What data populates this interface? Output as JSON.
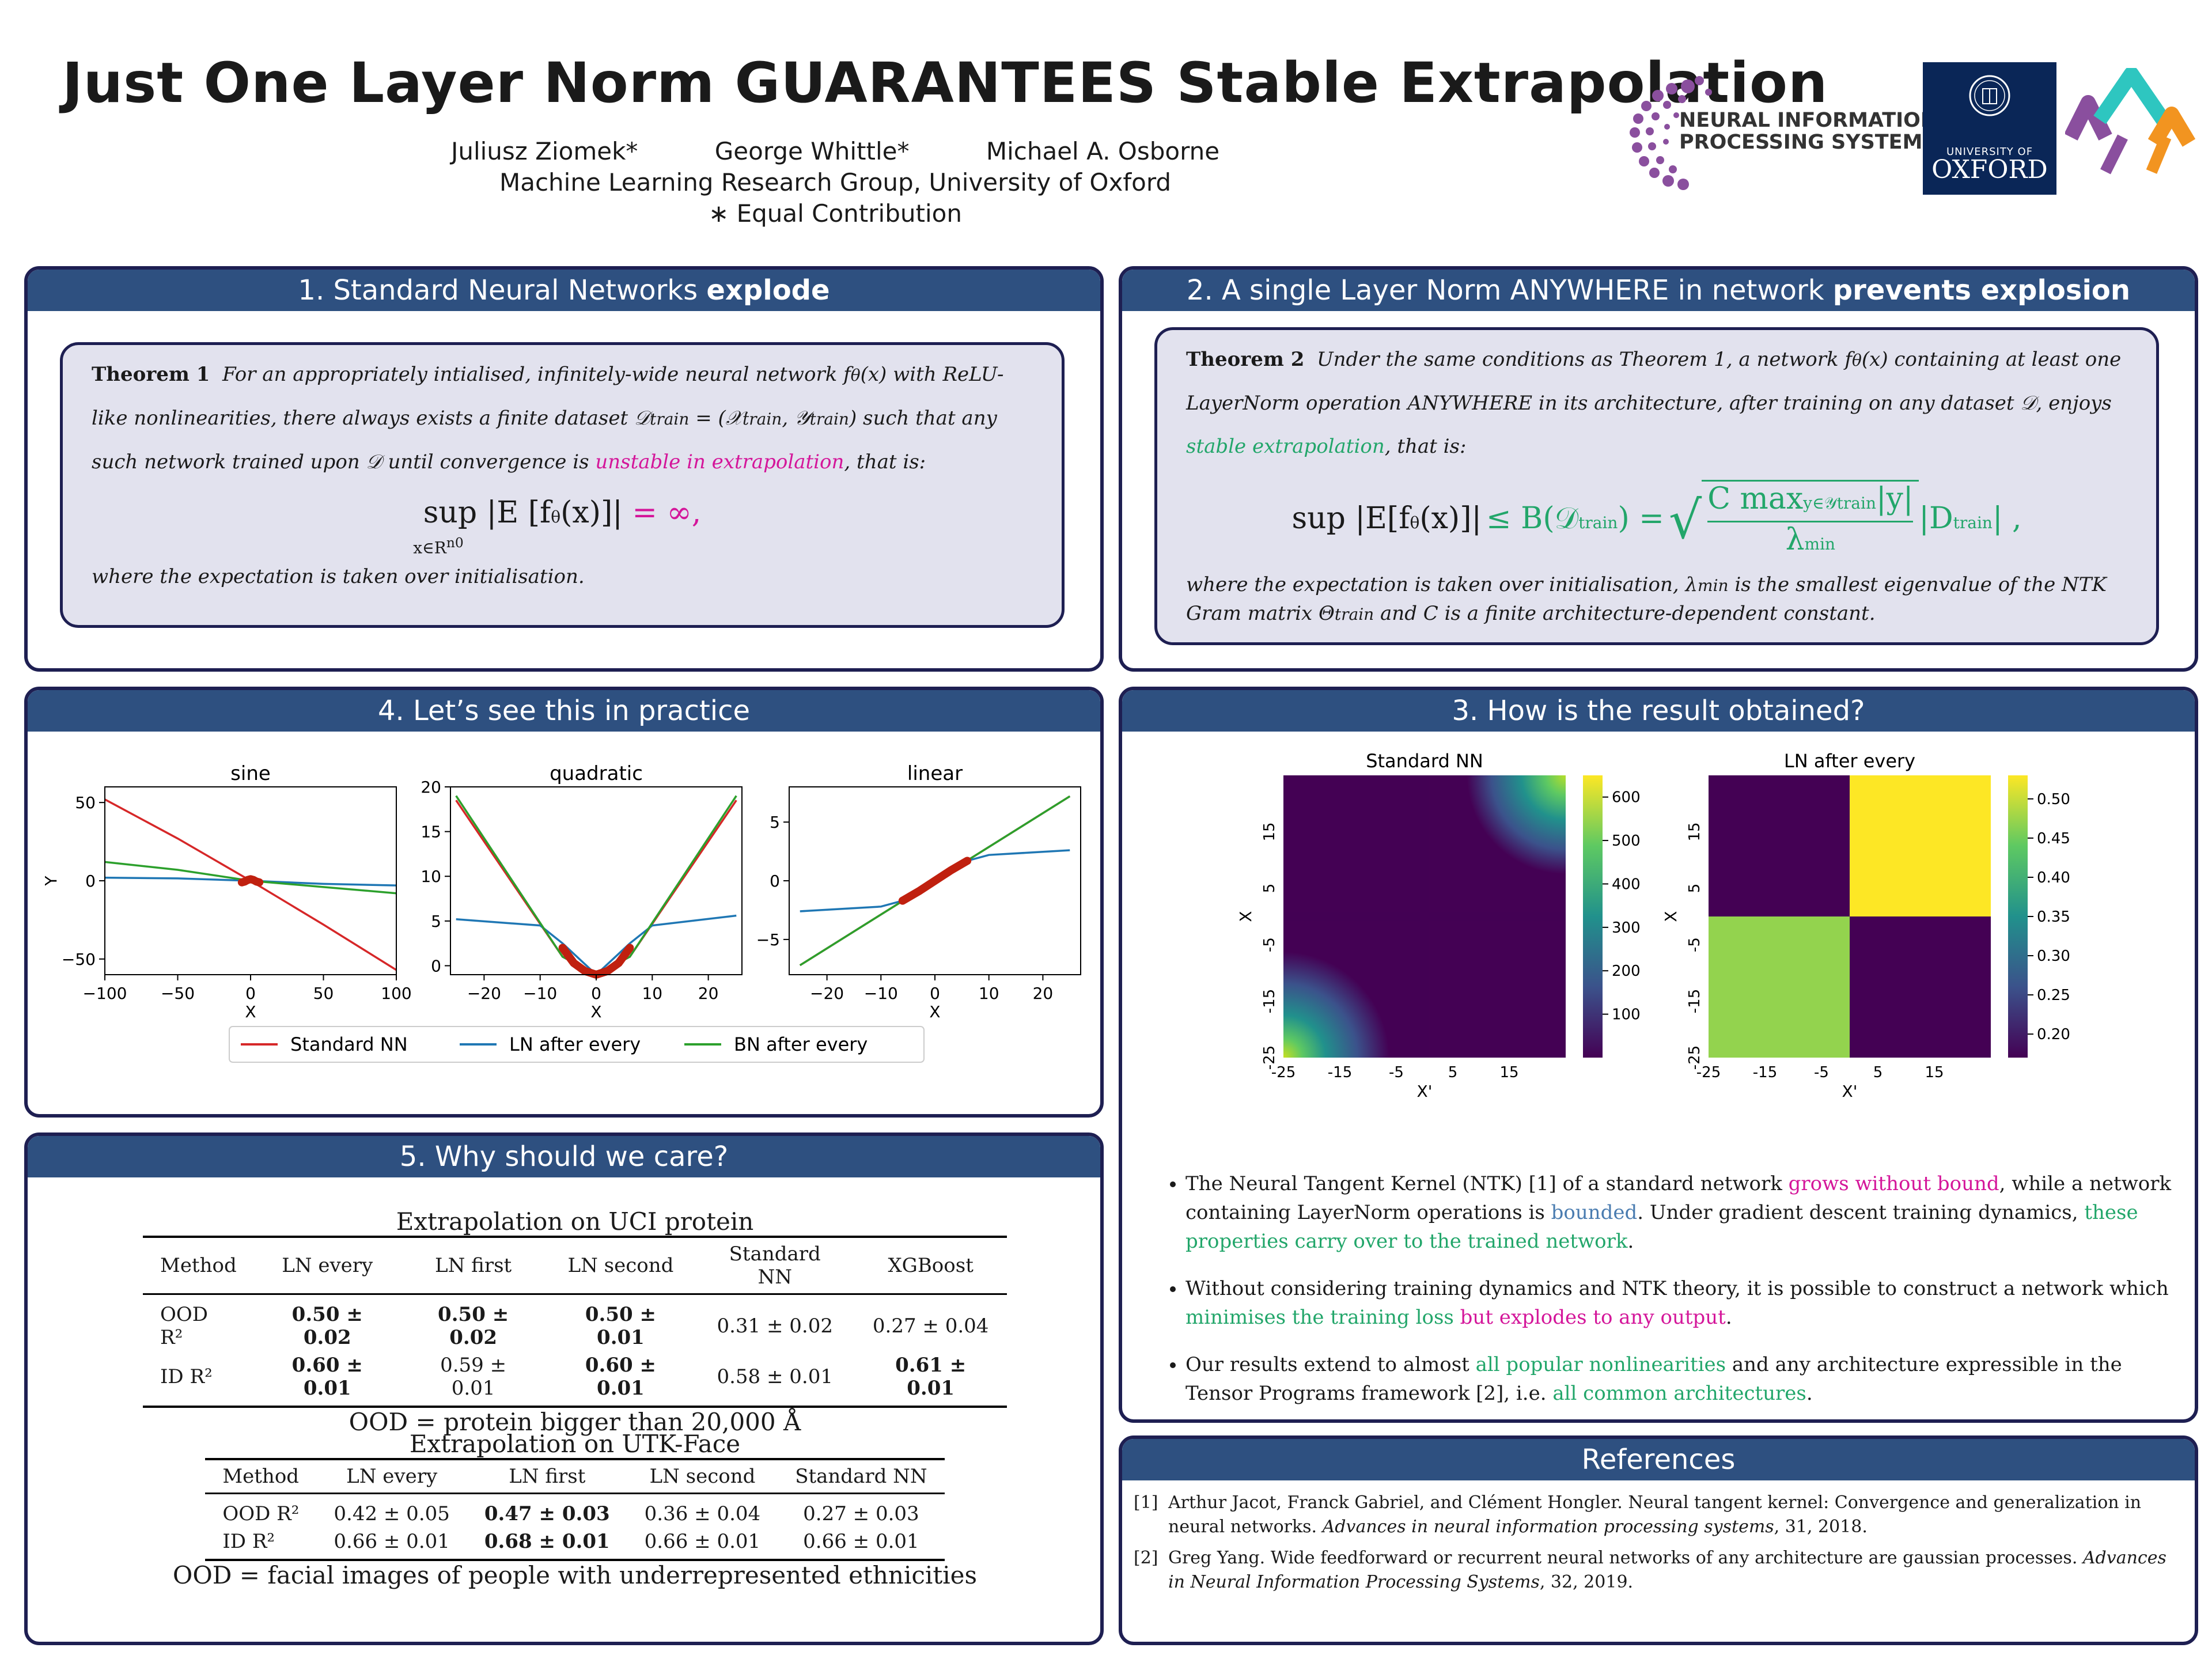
{
  "header": {
    "title": "Just One Layer Norm GUARANTEES Stable Extrapolation",
    "authors": [
      "Juliusz Ziomek*",
      "George Whittle*",
      "Michael A. Osborne"
    ],
    "affiliation": "Machine Learning Research Group, University of Oxford",
    "equal": "∗ Equal Contribution",
    "neurips_line1": "NEURAL INFORMATION",
    "neurips_line2": "PROCESSING SYSTEMS",
    "oxford_line1": "UNIVERSITY OF",
    "oxford_line2": "OXFORD"
  },
  "panel1": {
    "head_plain": "1. Standard Neural Networks ",
    "head_bold": "explode",
    "thm_label": "Theorem 1",
    "thm_text1": "For an appropriately intialised, infinitely-wide neural network f",
    "thm_text2": "(x) with ReLU-like nonlinearities, there always exists a finite dataset 𝒟",
    "thm_text3": " = (𝒳",
    "thm_text4": ", 𝒴",
    "thm_text5": ") such that any such network trained upon 𝒟 until convergence is ",
    "thm_highlight": "unstable in extrapolation",
    "thm_text6": ", that is:",
    "formula_main": "sup |E [f",
    "formula_rest": "(x)]|",
    "formula_eq": "= ∞,",
    "formula_sub": "x∈R",
    "after": "where the expectation is taken over initialisation."
  },
  "panel2": {
    "head_plain": "2. A single Layer Norm ANYWHERE in network ",
    "head_bold": "prevents explosion",
    "thm_label": "Theorem 2",
    "thm_text1": "Under the same conditions as Theorem 1, a network f",
    "thm_text2": "(x) containing at least one LayerNorm operation ANYWHERE in its architecture, after training on any dataset 𝒟, enjoys ",
    "thm_highlight": "stable extrapolation",
    "thm_text3": ", that is:",
    "formula_left": "sup |E[f",
    "formula_left2": "(x)]|",
    "formula_right": "≤ B(𝒟",
    "formula_right2": ") = ",
    "formula_num": "C max",
    "formula_num2": "|y|",
    "formula_den": "λ",
    "formula_tail": "|D",
    "after1": "where the expectation is taken over initialisation, λ",
    "after2": " is the smallest eigenvalue of the NTK Gram matrix Θ",
    "after3": " and C is a finite architecture-dependent constant."
  },
  "panel3": {
    "head": "3. How is the result obtained?",
    "bullets": [
      {
        "p1": "The Neural Tangent Kernel (NTK) [1] of a standard network ",
        "h1": "grows without bound",
        "p2": ", while a network containing LayerNorm operations is ",
        "h2": "bounded",
        "p3": ". Under gradient descent training dynamics, ",
        "h3": "these properties carry over to the trained network",
        "p4": "."
      },
      {
        "p1": "Without considering training dynamics and NTK theory, it is possible to construct a network which ",
        "h1": "minimises the training loss",
        "h2": " but explodes to any output",
        "p2": "."
      },
      {
        "p1": "Our results extend to almost ",
        "h1": "all popular nonlinearities",
        "p2": " and any architecture expressible in the Tensor Programs framework [2], i.e. ",
        "h2": "all common architectures",
        "p3": "."
      }
    ]
  },
  "panel4": {
    "head": "4. Let’s see this in practice"
  },
  "panel5": {
    "head": "5. Why should we care?",
    "table1": {
      "title": "Extrapolation on UCI protein",
      "columns": [
        "Method",
        "LN every",
        "LN first",
        "LN second",
        "Standard NN",
        "XGBoost"
      ],
      "rows": [
        [
          "OOD R²",
          "0.50 ± 0.02",
          "0.50 ± 0.02",
          "0.50 ± 0.01",
          "0.31 ± 0.02",
          "0.27 ± 0.04"
        ],
        [
          "ID R²",
          "0.60 ± 0.01",
          "0.59 ± 0.01",
          "0.60 ± 0.01",
          "0.58 ± 0.01",
          "0.61 ± 0.01"
        ]
      ],
      "note": "OOD = protein bigger than 20,000 Å"
    },
    "table2": {
      "title": "Extrapolation on UTK-Face",
      "columns": [
        "Method",
        "LN every",
        "LN first",
        "LN second",
        "Standard NN"
      ],
      "rows": [
        [
          "OOD R²",
          "0.42 ± 0.05",
          "0.47 ± 0.03",
          "0.36 ± 0.04",
          "0.27 ± 0.03"
        ],
        [
          "ID R²",
          "0.66 ± 0.01",
          "0.68 ± 0.01",
          "0.66 ± 0.01",
          "0.66 ± 0.01"
        ]
      ],
      "note": "OOD = facial images of people with underrepresented ethnicities"
    }
  },
  "refs": {
    "head": "References",
    "items": [
      {
        "n": "[1]",
        "plain": "Arthur Jacot, Franck Gabriel, and Clément Hongler. Neural tangent kernel: Convergence and generalization in neural networks. ",
        "ital": "Advances in neural information processing systems",
        "tail": ", 31, 2018."
      },
      {
        "n": "[2]",
        "plain": "Greg Yang. Wide feedforward or recurrent neural networks of any architecture are gaussian processes. ",
        "ital": "Advances in Neural Information Processing Systems",
        "tail": ", 32, 2019."
      }
    ]
  },
  "chart_data": [
    {
      "type": "line",
      "title": "sine",
      "xlabel": "X",
      "ylabel": "Y",
      "xlim": [
        -100,
        100
      ],
      "ylim": [
        -60,
        60
      ],
      "xticks": [
        -100,
        -50,
        0,
        50,
        100
      ],
      "yticks": [
        50,
        0,
        -50
      ],
      "series": [
        {
          "name": "Standard NN",
          "color": "#d62728",
          "x": [
            -100,
            -50,
            0,
            50,
            100
          ],
          "y": [
            52,
            27,
            0,
            -28,
            -57
          ]
        },
        {
          "name": "LN after every",
          "color": "#1f77b4",
          "x": [
            -100,
            -50,
            0,
            50,
            100
          ],
          "y": [
            2,
            1.5,
            0,
            -2,
            -3
          ]
        },
        {
          "name": "BN after every",
          "color": "#2ca02c",
          "x": [
            -100,
            -50,
            0,
            50,
            100
          ],
          "y": [
            12,
            7,
            0,
            -4,
            -8
          ]
        }
      ],
      "train_points": {
        "x": [
          -6,
          -4,
          -2,
          0,
          2,
          4,
          6
        ],
        "y": [
          -1,
          -0.5,
          0.5,
          1,
          0.5,
          -0.5,
          -1
        ]
      }
    },
    {
      "type": "line",
      "title": "quadratic",
      "xlabel": "X",
      "ylabel": "",
      "xlim": [
        -26,
        26
      ],
      "ylim": [
        -1,
        20
      ],
      "xticks": [
        -20,
        -10,
        0,
        10,
        20
      ],
      "yticks": [
        20,
        15,
        10,
        5,
        0
      ],
      "series": [
        {
          "name": "Standard NN",
          "color": "#d62728",
          "x": [
            -25,
            -6,
            0,
            6,
            25
          ],
          "y": [
            18.5,
            1,
            -1,
            1,
            18.5
          ]
        },
        {
          "name": "LN after every",
          "color": "#1f77b4",
          "x": [
            -25,
            -10,
            -6,
            0,
            6,
            10,
            25
          ],
          "y": [
            5.2,
            4.5,
            2.5,
            -1,
            2.5,
            4.5,
            5.6
          ]
        },
        {
          "name": "BN after every",
          "color": "#2ca02c",
          "x": [
            -25,
            -6,
            0,
            6,
            25
          ],
          "y": [
            19,
            1,
            -1,
            1,
            19
          ]
        }
      ],
      "train_points": {
        "x": [
          -6,
          -4,
          -2,
          0,
          2,
          4,
          6
        ],
        "y": [
          2,
          0.3,
          -0.6,
          -1,
          -0.6,
          0.3,
          2
        ]
      }
    },
    {
      "type": "line",
      "title": "linear",
      "xlabel": "X",
      "ylabel": "",
      "xlim": [
        -27,
        27
      ],
      "ylim": [
        -8,
        8
      ],
      "xticks": [
        -20,
        -10,
        0,
        10,
        20
      ],
      "yticks": [
        5,
        0,
        -5
      ],
      "series": [
        {
          "name": "Standard NN",
          "color": "#d62728",
          "x": [
            -25,
            25
          ],
          "y": [
            -7.2,
            7.2
          ]
        },
        {
          "name": "LN after every",
          "color": "#1f77b4",
          "x": [
            -25,
            -10,
            -6,
            6,
            10,
            25
          ],
          "y": [
            -2.6,
            -2.2,
            -1.7,
            1.7,
            2.2,
            2.6
          ]
        },
        {
          "name": "BN after every",
          "color": "#2ca02c",
          "x": [
            -25,
            25
          ],
          "y": [
            -7.2,
            7.2
          ]
        }
      ],
      "train_points": {
        "x": [
          -6,
          -3,
          0,
          3,
          6
        ],
        "y": [
          -1.7,
          -0.9,
          0,
          0.9,
          1.7
        ]
      }
    },
    {
      "type": "heatmap",
      "title": "Standard NN",
      "xlabel": "X'",
      "ylabel": "X",
      "range": [
        -25,
        25
      ],
      "ticks": [
        "-25",
        "-15",
        "-5",
        "5",
        "15"
      ],
      "colorbar_ticks": [
        100,
        200,
        300,
        400,
        500,
        600
      ],
      "colorbar_range": [
        0,
        650
      ],
      "cmap": "viridis"
    },
    {
      "type": "heatmap",
      "title": "LN after every",
      "xlabel": "X'",
      "ylabel": "X",
      "range": [
        -25,
        25
      ],
      "ticks": [
        "-25",
        "-15",
        "-5",
        "5",
        "15"
      ],
      "colorbar_ticks": [
        0.2,
        0.25,
        0.3,
        0.35,
        0.4,
        0.45,
        0.5
      ],
      "colorbar_range": [
        0.17,
        0.53
      ],
      "values": {
        "top_left": 0.17,
        "top_right": 0.53,
        "bottom_left": 0.47,
        "bottom_right": 0.17
      },
      "cmap": "viridis"
    }
  ]
}
